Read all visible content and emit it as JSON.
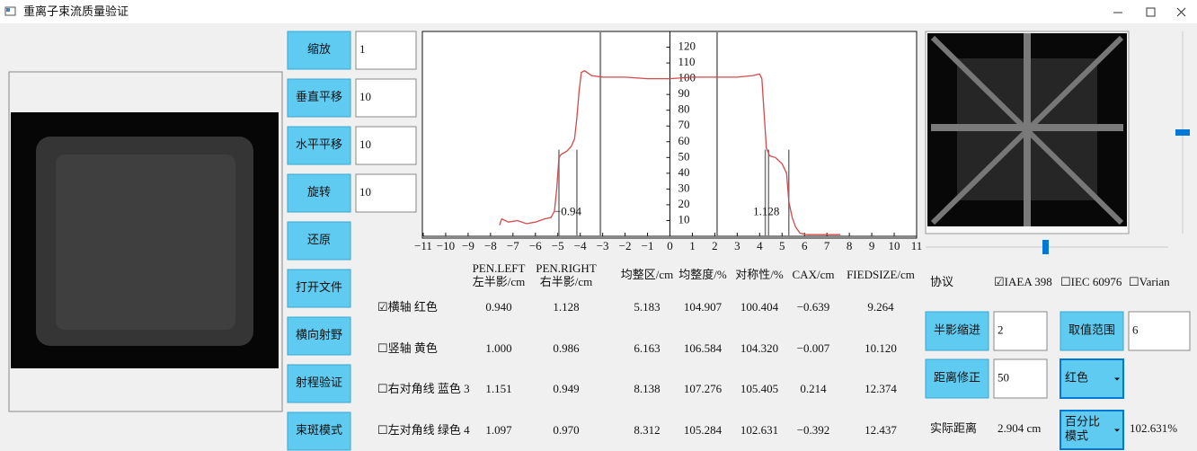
{
  "window": {
    "title": "重离子束流质量验证"
  },
  "controls": [
    {
      "button": "缩放",
      "input": "1"
    },
    {
      "button": "垂直平移",
      "input": "10"
    },
    {
      "button": "水平平移",
      "input": "10"
    },
    {
      "button": "旋转",
      "input": "10"
    },
    {
      "button": "还原"
    },
    {
      "button": "打开文件"
    },
    {
      "button": "横向射野"
    },
    {
      "button": "射程验证"
    },
    {
      "button": "束斑模式"
    }
  ],
  "profile_chart": {
    "type": "line",
    "xlim": [
      -11,
      11
    ],
    "ylim": [
      0,
      130
    ],
    "xticks": [
      {
        "value": -11,
        "label": "−11"
      },
      {
        "value": -10,
        "label": "−10"
      },
      {
        "value": -9,
        "label": "−9"
      },
      {
        "value": -8,
        "label": "−8"
      },
      {
        "value": -7,
        "label": "−7"
      },
      {
        "value": -6,
        "label": "−6"
      },
      {
        "value": -5,
        "label": "−5"
      },
      {
        "value": -4,
        "label": "−4"
      },
      {
        "value": -3,
        "label": "−3"
      },
      {
        "value": -2,
        "label": "−2"
      },
      {
        "value": -1,
        "label": "−1"
      },
      0,
      1,
      2,
      3,
      4,
      5,
      6,
      7,
      8,
      9,
      10,
      11
    ],
    "yticks": [
      10,
      20,
      30,
      40,
      50,
      60,
      70,
      80,
      90,
      100,
      110,
      120
    ],
    "series": [
      {
        "color": "#d24a4a",
        "x": [
          -7.6,
          -7.5,
          -7.2,
          -6.8,
          -6.4,
          -6.0,
          -5.6,
          -5.3,
          -5.15,
          -5.05,
          -4.95,
          -4.85,
          -4.6,
          -4.4,
          -4.25,
          -4.15,
          -4.05,
          -3.95,
          -3.8,
          -3.5,
          -3.0,
          -2.0,
          -1.0,
          0.0,
          1.0,
          2.0,
          3.0,
          3.7,
          4.0,
          4.1,
          4.2,
          4.3,
          4.45,
          4.7,
          5.0,
          5.2,
          5.3,
          5.45,
          5.6,
          5.8,
          6.1,
          6.6,
          7.2,
          7.6
        ],
        "values": [
          7,
          11,
          9,
          10,
          8,
          9,
          11,
          12,
          16,
          30,
          50,
          52,
          54,
          57,
          62,
          75,
          92,
          104,
          105,
          102,
          101,
          101,
          100,
          100,
          101,
          101,
          101,
          102,
          103,
          100,
          78,
          56,
          51,
          50,
          46,
          40,
          22,
          12,
          6,
          2,
          1,
          1,
          1,
          1
        ]
      }
    ],
    "vlines": [
      -3.1,
      2.1
    ],
    "pen_lines": [
      -4.95,
      -4.15,
      4.25,
      4.4,
      5.3
    ],
    "annotations": [
      {
        "text": "−0.94",
        "x": -4.55,
        "y": 15
      },
      {
        "text": "1.128",
        "x": 4.3,
        "y": 15
      }
    ]
  },
  "table": {
    "header": [
      [
        "PEN.LEFT",
        "左半影/cm"
      ],
      [
        "PEN.RIGHT",
        "右半影/cm"
      ],
      [
        "均整区/cm"
      ],
      [
        "均整度/%"
      ],
      [
        "对称性/%"
      ],
      [
        "CAX/cm"
      ],
      [
        "FIEDSIZE/cm"
      ]
    ],
    "rows": [
      [
        "☑横轴 红色",
        "0.940",
        "1.128",
        "5.183",
        "104.907",
        "100.404",
        "−0.639",
        "9.264"
      ],
      [
        "☐竖轴 黄色",
        "1.000",
        "0.986",
        "6.163",
        "106.584",
        "104.320",
        "−0.007",
        "10.120"
      ],
      [
        "☐右对角线 蓝色 3",
        "1.151",
        "0.949",
        "8.138",
        "107.276",
        "105.405",
        "0.214",
        "12.374"
      ],
      [
        "☐左对角线 绿色 4",
        "1.097",
        "0.970",
        "8.312",
        "105.284",
        "102.631",
        "−0.392",
        "12.437"
      ]
    ]
  },
  "right_panel": {
    "protocol_label": "协议",
    "protocols": [
      "☑IAEA 398",
      "☐IEC 60976",
      "☐Varian"
    ],
    "penumbra_button": "半影缩进",
    "penumbra_input": "2",
    "range_button": "取值范围",
    "range_input": "6",
    "distance_button": "距离修正",
    "distance_input": "50",
    "color_select": "红色",
    "actual_label": "实际距离",
    "actual_value": "2.904 cm",
    "mode_select": "百分比模式",
    "mode_value": "102.631%"
  }
}
